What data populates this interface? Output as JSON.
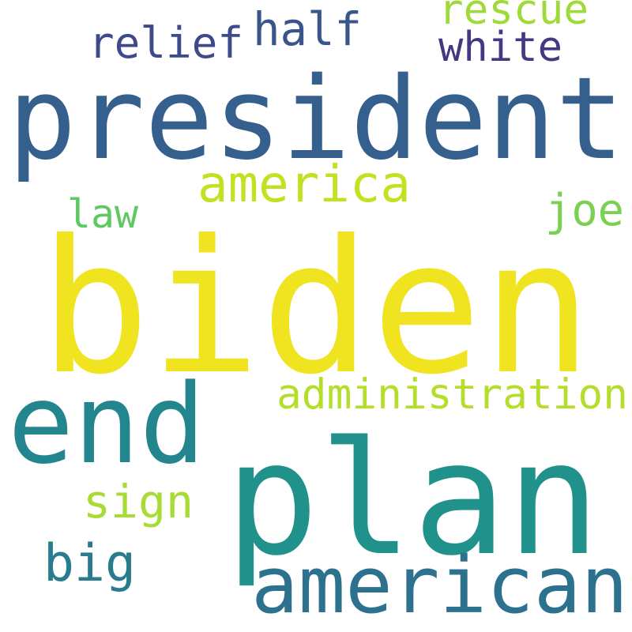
{
  "words": [
    {
      "text": "biden",
      "color": "#f0e31f"
    },
    {
      "text": "president",
      "color": "#355f8d"
    },
    {
      "text": "plan",
      "color": "#21918c"
    },
    {
      "text": "end",
      "color": "#23858e"
    },
    {
      "text": "american",
      "color": "#2c718e"
    },
    {
      "text": "administration",
      "color": "#b5de2b"
    },
    {
      "text": "america",
      "color": "#c4e021"
    },
    {
      "text": "half",
      "color": "#3a548c"
    },
    {
      "text": "relief",
      "color": "#3e4a89"
    },
    {
      "text": "rescue",
      "color": "#a0da39"
    },
    {
      "text": "white",
      "color": "#453781"
    },
    {
      "text": "joe",
      "color": "#7ad151"
    },
    {
      "text": "law",
      "color": "#5ec962"
    },
    {
      "text": "sign",
      "color": "#a8db34"
    },
    {
      "text": "big",
      "color": "#297b8e"
    }
  ]
}
